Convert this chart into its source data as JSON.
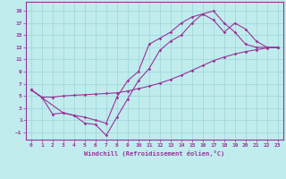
{
  "xlabel": "Windchill (Refroidissement éolien,°C)",
  "xlim": [
    -0.5,
    23.5
  ],
  "ylim": [
    -2.2,
    20.5
  ],
  "yticks": [
    -1,
    1,
    3,
    5,
    7,
    9,
    11,
    13,
    15,
    17,
    19
  ],
  "xticks": [
    0,
    1,
    2,
    3,
    4,
    5,
    6,
    7,
    8,
    9,
    10,
    11,
    12,
    13,
    14,
    15,
    16,
    17,
    18,
    19,
    20,
    21,
    22,
    23
  ],
  "bg_color": "#c0ecee",
  "grid_color": "#a0d8da",
  "line_color": "#993399",
  "line1_x": [
    0,
    1,
    2,
    3,
    4,
    5,
    6,
    7,
    8,
    9,
    10,
    11,
    12,
    13,
    14,
    15,
    16,
    17,
    18,
    19,
    20,
    21,
    22,
    23
  ],
  "line1_y": [
    6,
    4.8,
    4.8,
    5.0,
    5.1,
    5.2,
    5.3,
    5.4,
    5.5,
    5.8,
    6.2,
    6.6,
    7.1,
    7.7,
    8.4,
    9.2,
    10.0,
    10.8,
    11.4,
    11.9,
    12.3,
    12.6,
    12.9,
    13.0
  ],
  "line2_x": [
    0,
    1,
    2,
    3,
    4,
    5,
    6,
    7,
    8,
    9,
    10,
    11,
    12,
    13,
    14,
    15,
    16,
    17,
    18,
    19,
    20,
    21,
    22,
    23
  ],
  "line2_y": [
    6,
    4.8,
    2.0,
    2.2,
    1.8,
    0.5,
    0.3,
    -1.5,
    1.5,
    4.5,
    7.5,
    9.5,
    12.5,
    14.0,
    15.0,
    17.0,
    18.5,
    19.0,
    17.0,
    15.5,
    13.5,
    13.0,
    13.0,
    13.0
  ],
  "line3_x": [
    0,
    3,
    4,
    5,
    6,
    7,
    8,
    9,
    10,
    11,
    12,
    13,
    14,
    15,
    16,
    17,
    18,
    19,
    20,
    21,
    22,
    23
  ],
  "line3_y": [
    6,
    2.2,
    1.8,
    1.5,
    1.0,
    0.5,
    4.8,
    7.5,
    9.0,
    13.5,
    14.5,
    15.5,
    17.0,
    18.0,
    18.5,
    17.5,
    15.5,
    17.0,
    16.0,
    14.0,
    13.0,
    13.0
  ]
}
